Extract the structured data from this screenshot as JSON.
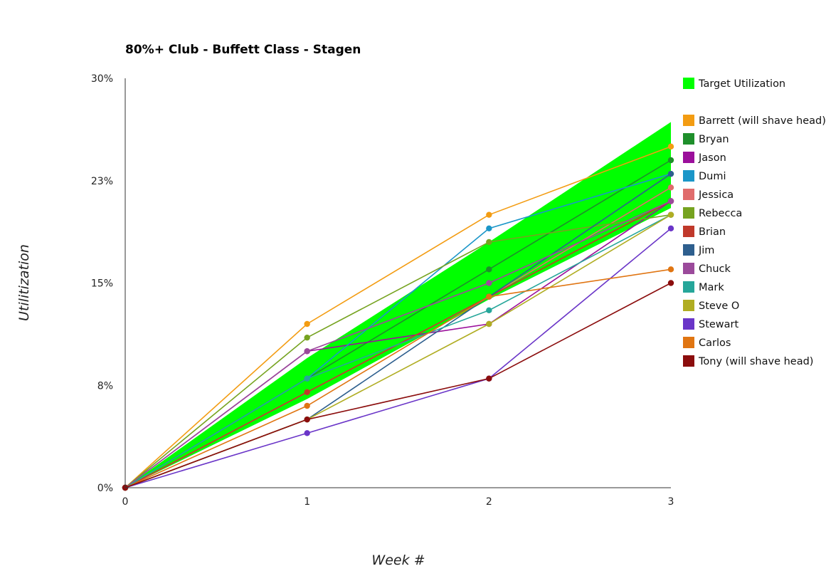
{
  "chart_data": {
    "type": "line",
    "title": "80%+ Club - Buffett Class - Stagen",
    "xlabel": "Week #",
    "ylabel": "Utilitization",
    "x": [
      0,
      1,
      2,
      3
    ],
    "x_ticks": [
      "0",
      "1",
      "2",
      "3"
    ],
    "ylim": [
      0,
      30
    ],
    "y_ticks": [
      {
        "value": 0,
        "label": "0%"
      },
      {
        "value": 7.5,
        "label": "8%"
      },
      {
        "value": 15,
        "label": "15%"
      },
      {
        "value": 22.5,
        "label": "23%"
      },
      {
        "value": 30,
        "label": "30%"
      }
    ],
    "grid": false,
    "legend_position": "right",
    "target_band": {
      "name": "Target Utilization",
      "color": "#00ff00",
      "lower": [
        0,
        6.5,
        13.8,
        20.5
      ],
      "upper": [
        0,
        9.5,
        18.0,
        26.8
      ]
    },
    "series": [
      {
        "name": "Barrett (will shave head)",
        "color": "#f39c12",
        "values": [
          0,
          12.0,
          20.0,
          25.0
        ]
      },
      {
        "name": "Bryan",
        "color": "#1e8f2b",
        "values": [
          0,
          8.0,
          16.0,
          24.0
        ]
      },
      {
        "name": "Jason",
        "color": "#9b0f9b",
        "values": [
          0,
          10.0,
          12.0,
          21.0
        ]
      },
      {
        "name": "Dumi",
        "color": "#1b96c8",
        "values": [
          0,
          8.0,
          19.0,
          23.0
        ]
      },
      {
        "name": "Jessica",
        "color": "#e06c6c",
        "values": [
          0,
          7.0,
          14.0,
          22.0
        ]
      },
      {
        "name": "Rebecca",
        "color": "#76a320",
        "values": [
          0,
          11.0,
          18.0,
          20.0
        ]
      },
      {
        "name": "Brian",
        "color": "#c0392b",
        "values": [
          0,
          7.0,
          14.0,
          21.0
        ]
      },
      {
        "name": "Jim",
        "color": "#2e5f8e",
        "values": [
          0,
          5.0,
          14.0,
          23.0
        ]
      },
      {
        "name": "Chuck",
        "color": "#9b4a9b",
        "values": [
          0,
          10.0,
          15.0,
          21.0
        ]
      },
      {
        "name": "Mark",
        "color": "#26a69a",
        "values": [
          0,
          8.0,
          13.0,
          20.0
        ]
      },
      {
        "name": "Steve O",
        "color": "#b0ad22",
        "values": [
          0,
          5.0,
          12.0,
          20.0
        ]
      },
      {
        "name": "Stewart",
        "color": "#6a35c8",
        "values": [
          0,
          4.0,
          8.0,
          19.0
        ]
      },
      {
        "name": "Carlos",
        "color": "#e07512",
        "values": [
          0,
          6.0,
          14.0,
          16.0
        ]
      },
      {
        "name": "Tony (will shave head)",
        "color": "#8b0d0d",
        "values": [
          0,
          5.0,
          8.0,
          15.0
        ]
      }
    ]
  }
}
